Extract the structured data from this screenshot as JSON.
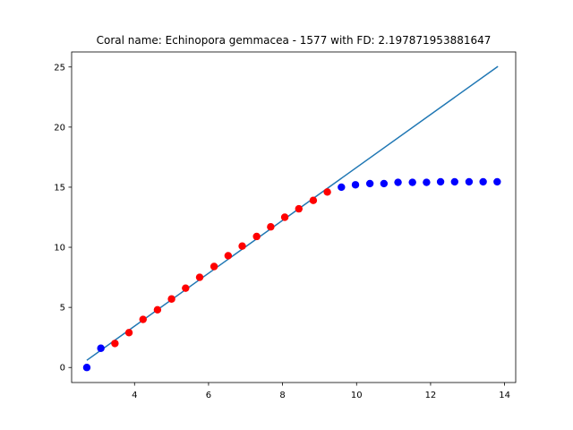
{
  "chart_data": {
    "type": "scatter",
    "title": "Coral name: Echinopora gemmacea - 1577 with FD: 2.197871953881647",
    "xlabel": "",
    "ylabel": "",
    "xlim": [
      2.3,
      14.3
    ],
    "ylim": [
      -1.25,
      26.25
    ],
    "x_ticks": [
      4,
      6,
      8,
      10,
      12,
      14
    ],
    "y_ticks": [
      0,
      5,
      10,
      15,
      20,
      25
    ],
    "grid": false,
    "legend": "none",
    "colors": {
      "fit_line": "#1f77b4",
      "red_points": "#ff0000",
      "blue_points": "#0000ff"
    },
    "series": [
      {
        "type": "line",
        "color": "#1f77b4",
        "x": [
          2.71,
          13.82
        ],
        "y": [
          0.6,
          25.05
        ]
      },
      {
        "type": "scatter",
        "color": "#0000ff",
        "x": [
          2.71,
          3.09
        ],
        "y": [
          0.0,
          1.6
        ]
      },
      {
        "type": "scatter",
        "color": "#ff0000",
        "x": [
          3.47,
          3.85,
          4.23,
          4.62,
          5.0,
          5.38,
          5.76,
          6.15,
          6.53,
          6.91,
          7.3,
          7.68,
          8.06,
          8.44,
          8.83,
          9.21
        ],
        "y": [
          2.0,
          2.9,
          4.0,
          4.8,
          5.7,
          6.6,
          7.5,
          8.4,
          9.3,
          10.1,
          10.9,
          11.7,
          12.5,
          13.2,
          13.9,
          14.6
        ]
      },
      {
        "type": "scatter",
        "color": "#0000ff",
        "x": [
          9.59,
          9.97,
          10.36,
          10.74,
          11.12,
          11.51,
          11.89,
          12.27,
          12.65,
          13.04,
          13.42,
          13.8
        ],
        "y": [
          15.0,
          15.2,
          15.3,
          15.3,
          15.4,
          15.4,
          15.4,
          15.45,
          15.45,
          15.45,
          15.45,
          15.45
        ]
      }
    ]
  }
}
